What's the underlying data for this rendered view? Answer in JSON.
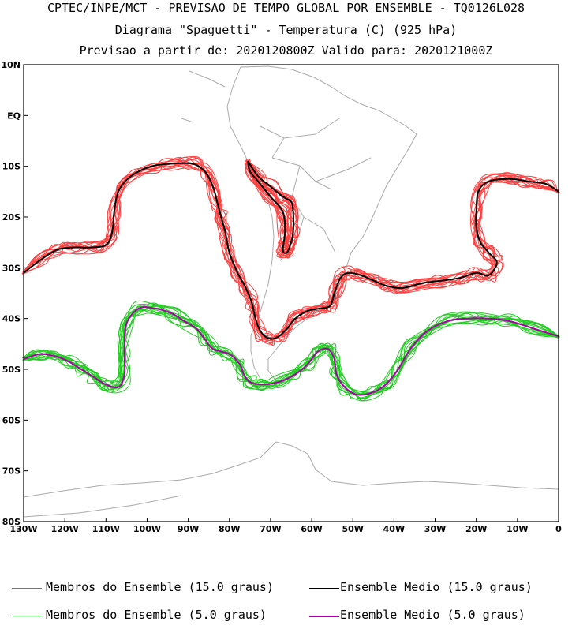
{
  "header": {
    "line1": "CPTEC/INPE/MCT - PREVISAO DE TEMPO GLOBAL POR ENSEMBLE - TQ0126L028",
    "line2": "Diagrama \"Spaguetti\" - Temperatura (C) (925 hPa)",
    "line3": "Previsao a partir de: 2020120800Z  Valido para: 2020121000Z"
  },
  "chart_data": {
    "type": "line",
    "map_background": "South America and surrounding oceans (gray coastlines)",
    "xlim": [
      -130,
      0
    ],
    "ylim": [
      -80,
      10
    ],
    "x_ticks": [
      -130,
      -120,
      -110,
      -100,
      -90,
      -80,
      -70,
      -60,
      -50,
      -40,
      -30,
      -20,
      -10,
      0
    ],
    "x_tick_labels": [
      "130W",
      "120W",
      "110W",
      "100W",
      "90W",
      "80W",
      "70W",
      "60W",
      "50W",
      "40W",
      "30W",
      "20W",
      "10W",
      "0"
    ],
    "y_ticks": [
      10,
      0,
      -10,
      -20,
      -30,
      -40,
      -50,
      -60,
      -70,
      -80
    ],
    "y_tick_labels": [
      "10N",
      "EQ",
      "10S",
      "20S",
      "30S",
      "40S",
      "50S",
      "60S",
      "70S",
      "80S"
    ],
    "series": [
      {
        "name": "Ensemble Medio (15.0 graus)",
        "color": "#000000",
        "segments": [
          [
            [
              -130,
              -31
            ],
            [
              -126,
              -28.5
            ],
            [
              -122,
              -26.5
            ],
            [
              -118,
              -26
            ],
            [
              -114,
              -26
            ],
            [
              -110,
              -25.5
            ],
            [
              -108.5,
              -23
            ],
            [
              -108,
              -19
            ],
            [
              -107,
              -15
            ],
            [
              -104,
              -12
            ],
            [
              -99,
              -10
            ],
            [
              -94,
              -9.5
            ],
            [
              -89,
              -9.5
            ],
            [
              -86,
              -11
            ],
            [
              -84,
              -14
            ],
            [
              -83,
              -17
            ],
            [
              -82,
              -20
            ],
            [
              -81,
              -23
            ],
            [
              -80,
              -27
            ],
            [
              -78,
              -31
            ],
            [
              -76,
              -34
            ],
            [
              -74.5,
              -37
            ],
            [
              -73.5,
              -40.5
            ],
            [
              -72,
              -43
            ],
            [
              -70,
              -44
            ],
            [
              -68,
              -43.5
            ],
            [
              -66,
              -42
            ],
            [
              -64,
              -40
            ],
            [
              -61,
              -38.5
            ],
            [
              -58,
              -38
            ],
            [
              -55.5,
              -37.5
            ],
            [
              -54.5,
              -35
            ],
            [
              -53,
              -32
            ],
            [
              -51,
              -31
            ],
            [
              -48,
              -31.5
            ],
            [
              -45,
              -32.5
            ],
            [
              -42,
              -33.5
            ],
            [
              -38,
              -34
            ],
            [
              -33,
              -33
            ],
            [
              -28,
              -32.5
            ],
            [
              -24,
              -32
            ],
            [
              -20,
              -31
            ],
            [
              -17,
              -31.5
            ],
            [
              -15,
              -29
            ],
            [
              -17,
              -27
            ],
            [
              -19,
              -25
            ],
            [
              -20,
              -22
            ],
            [
              -20,
              -19
            ],
            [
              -19.5,
              -15
            ],
            [
              -17,
              -13
            ],
            [
              -12,
              -12.5
            ],
            [
              -7,
              -13
            ],
            [
              -3,
              -13.5
            ],
            [
              0,
              -15
            ]
          ],
          [
            [
              -75.5,
              -9
            ],
            [
              -73,
              -12
            ],
            [
              -70,
              -14
            ],
            [
              -67,
              -16
            ],
            [
              -65,
              -17
            ],
            [
              -64.5,
              -19
            ],
            [
              -64.5,
              -23
            ],
            [
              -65,
              -25
            ],
            [
              -66,
              -27
            ],
            [
              -67,
              -26.5
            ],
            [
              -66.5,
              -23
            ],
            [
              -67,
              -19
            ],
            [
              -70,
              -16
            ],
            [
              -73,
              -13
            ],
            [
              -75,
              -11
            ],
            [
              -75.5,
              -9
            ]
          ]
        ]
      },
      {
        "name": "Ensemble Medio (5.0 graus)",
        "color": "#aa00aa",
        "segments": [
          [
            [
              -130,
              -48
            ],
            [
              -126,
              -47
            ],
            [
              -122,
              -47.5
            ],
            [
              -119,
              -48.5
            ],
            [
              -116,
              -50
            ],
            [
              -113,
              -51.5
            ],
            [
              -110,
              -53
            ],
            [
              -107,
              -53.5
            ],
            [
              -105.5,
              -51
            ],
            [
              -105.5,
              -46
            ],
            [
              -105,
              -41
            ],
            [
              -102,
              -38
            ],
            [
              -98,
              -38
            ],
            [
              -94,
              -39
            ],
            [
              -91,
              -40.5
            ],
            [
              -88,
              -42
            ],
            [
              -86,
              -44
            ],
            [
              -84,
              -46
            ],
            [
              -80,
              -47
            ],
            [
              -77.5,
              -49
            ],
            [
              -76.5,
              -51
            ],
            [
              -75,
              -52.5
            ],
            [
              -72,
              -53
            ],
            [
              -68,
              -52.5
            ],
            [
              -64,
              -51
            ],
            [
              -61,
              -49
            ],
            [
              -58.5,
              -46.5
            ],
            [
              -56,
              -46
            ],
            [
              -54.5,
              -48
            ],
            [
              -54,
              -51
            ],
            [
              -52,
              -53.5
            ],
            [
              -49,
              -55
            ],
            [
              -45,
              -54.5
            ],
            [
              -42,
              -53
            ],
            [
              -39,
              -50
            ],
            [
              -36,
              -46
            ],
            [
              -32,
              -42.5
            ],
            [
              -27,
              -40.5
            ],
            [
              -22,
              -40
            ],
            [
              -17,
              -40
            ],
            [
              -12,
              -40.5
            ],
            [
              -6,
              -42
            ],
            [
              0,
              -43.5
            ]
          ]
        ]
      },
      {
        "name": "Membros do Ensemble (15.0 graus)",
        "color": "#ff4040"
      },
      {
        "name": "Membros do Ensemble (5.0 graus)",
        "color": "#22cc22"
      }
    ],
    "legend": {
      "placement": "bottom",
      "entries": [
        {
          "label": "Membros do Ensemble (15.0 graus)",
          "color": "#ff4040"
        },
        {
          "label": "Ensemble Medio (15.0 graus)",
          "color": "#000000"
        },
        {
          "label": "Membros do Ensemble (5.0 graus)",
          "color": "#22cc22"
        },
        {
          "label": "Ensemble Medio (5.0 graus)",
          "color": "#aa00aa"
        }
      ]
    }
  }
}
